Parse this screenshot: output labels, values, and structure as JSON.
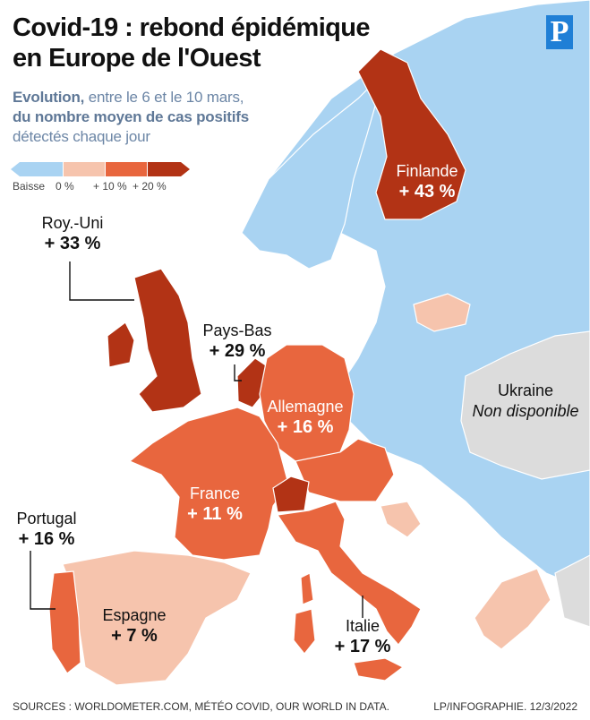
{
  "title_line1": "Covid-19 : rebond épidémique",
  "title_line2": "en Europe de l'Ouest",
  "subtitle": {
    "part1_bold": "Evolution,",
    "part1": " entre le 6 et le 10 mars,",
    "line2": "du nombre moyen de cas positifs",
    "line3": "détectés chaque jour"
  },
  "logo": "P",
  "legend": {
    "labels": [
      "Baisse",
      "0 %",
      "+ 10 %",
      "+ 20 %"
    ],
    "colors": [
      "#a9d3f2",
      "#f6c4ad",
      "#e8663e",
      "#b23315"
    ]
  },
  "countries": {
    "uk": {
      "name": "Roy.-Uni",
      "value": "+ 33 %"
    },
    "finland": {
      "name": "Finlande",
      "value": "+ 43 %"
    },
    "netherlands": {
      "name": "Pays-Bas",
      "value": "+ 29 %"
    },
    "germany": {
      "name": "Allemagne",
      "value": "+ 16 %"
    },
    "ukraine": {
      "name": "Ukraine",
      "value": "Non disponible"
    },
    "france": {
      "name": "France",
      "value": "+ 11 %"
    },
    "portugal": {
      "name": "Portugal",
      "value": "+ 16 %"
    },
    "spain": {
      "name": "Espagne",
      "value": "+ 7 %"
    },
    "italy": {
      "name": "Italie",
      "value": "+ 17 %"
    }
  },
  "colors": {
    "decrease": "#a9d3f2",
    "zero": "#f6c4ad",
    "plus10": "#e8663e",
    "plus20": "#b23315",
    "unavailable": "#dcdcdc"
  },
  "footer": {
    "sources": "SOURCES : WORLDOMETER.COM, MÉTÉO COVID, OUR WORLD IN DATA.",
    "credit": "LP/INFOGRAPHIE.  12/3/2022"
  }
}
